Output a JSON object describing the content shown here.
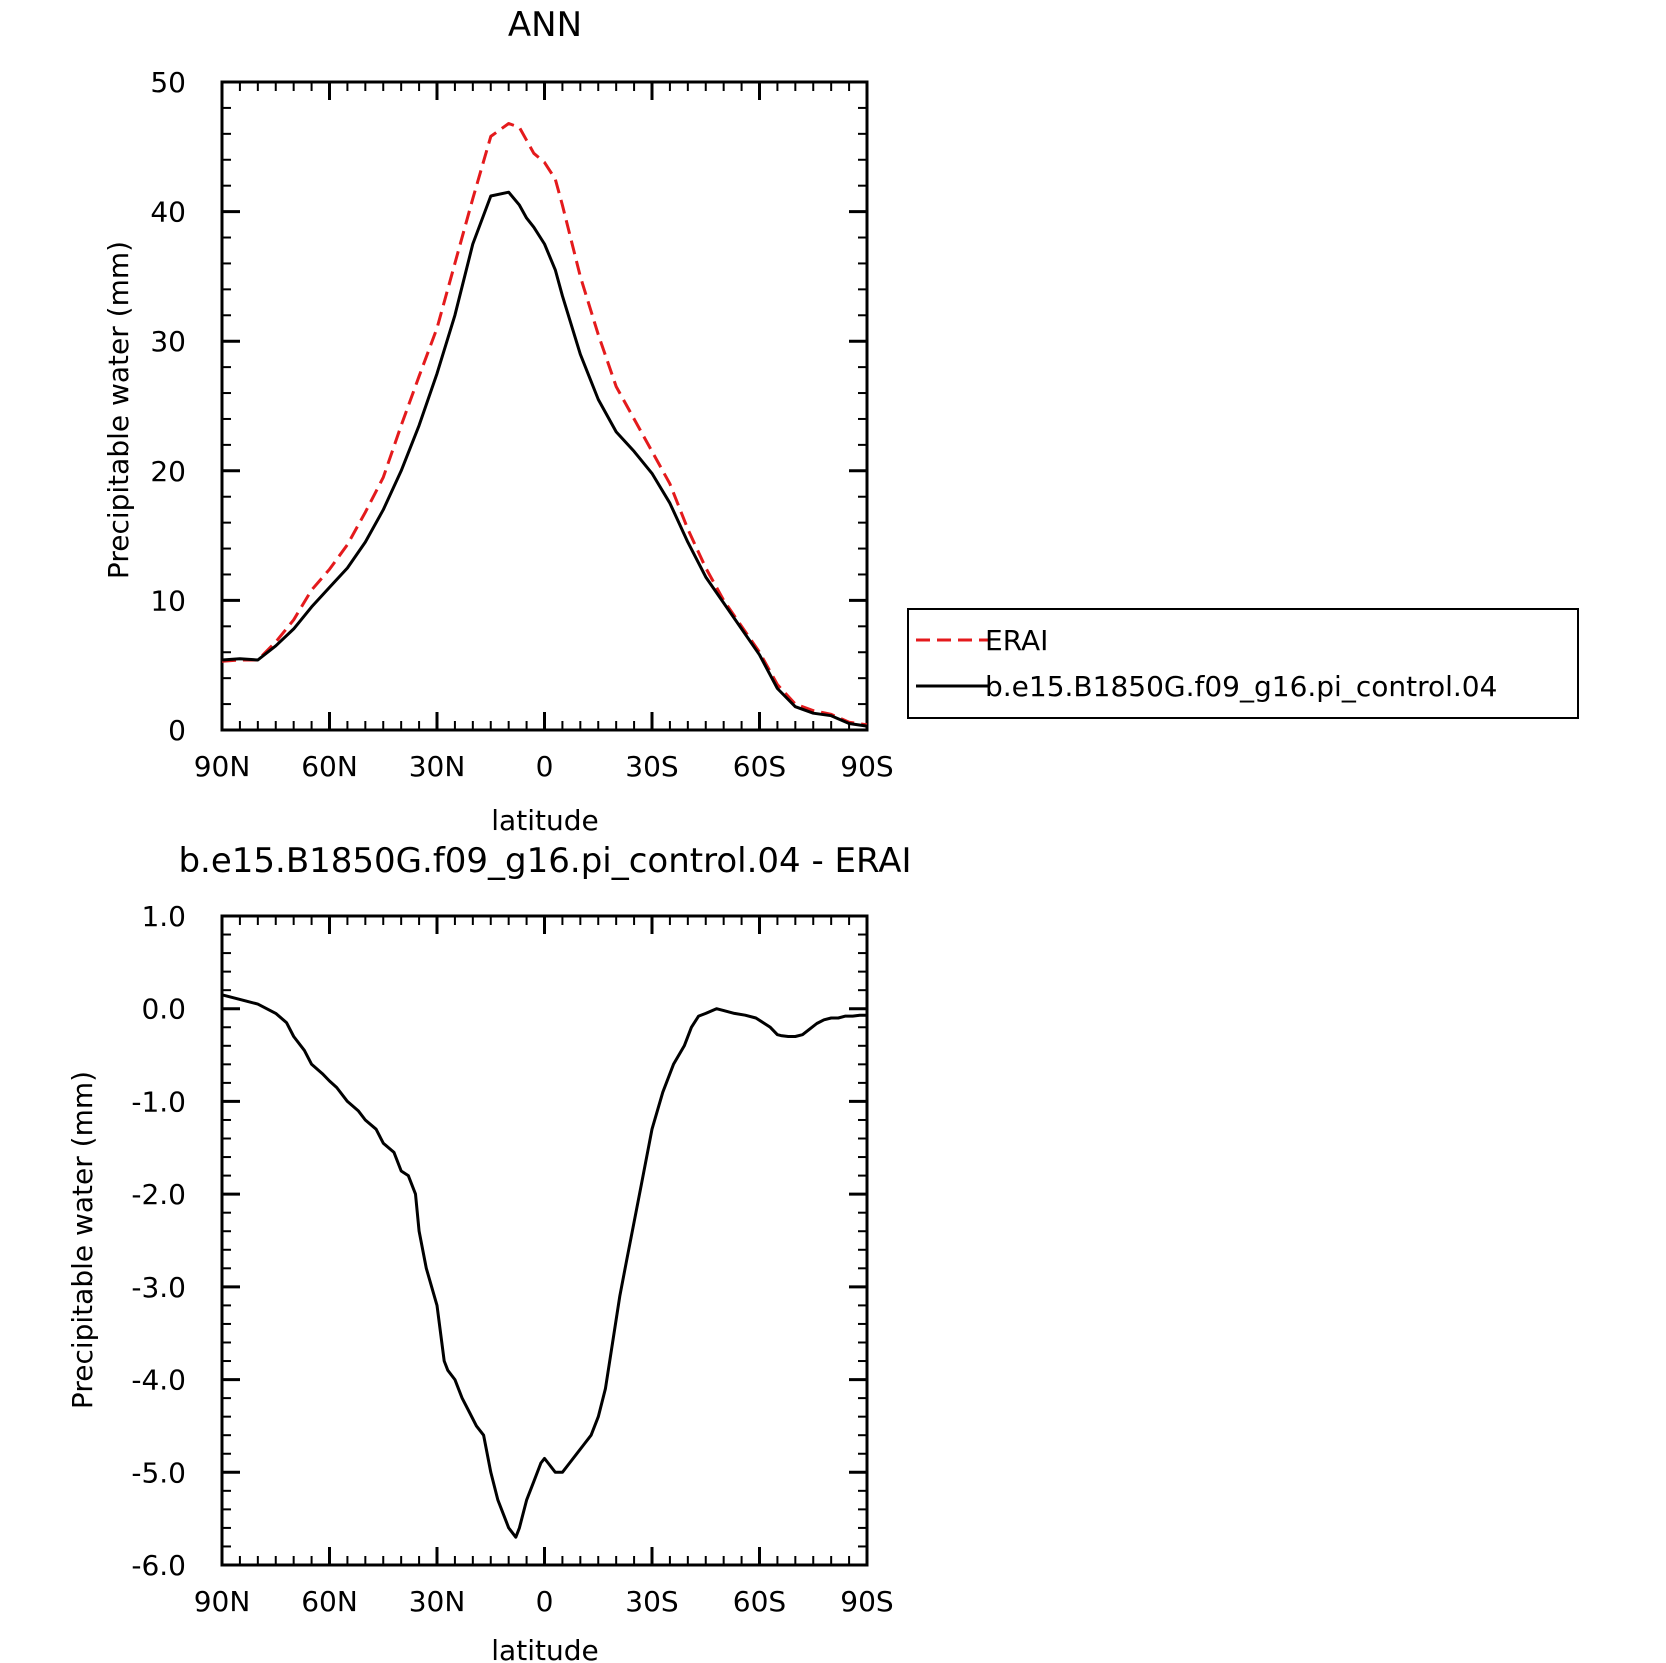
{
  "chart_data": [
    {
      "type": "line",
      "title": "ANN",
      "xlabel": "latitude",
      "ylabel": "Precipitable water (mm)",
      "xlim": [
        90,
        -90
      ],
      "ylim": [
        0,
        50
      ],
      "xticks": [
        90,
        60,
        30,
        0,
        -30,
        -60,
        -90
      ],
      "xtick_labels": [
        "90N",
        "60N",
        "30N",
        "0",
        "30S",
        "60S",
        "90S"
      ],
      "yticks": [
        0,
        10,
        20,
        30,
        40,
        50
      ],
      "ytick_labels": [
        "0",
        "10",
        "20",
        "30",
        "40",
        "50"
      ],
      "grid": false,
      "legend_position": "right",
      "series": [
        {
          "name": "ERAI",
          "color": "#e41a1c",
          "style": "dashed",
          "x": [
            90,
            85,
            80,
            75,
            70,
            65,
            60,
            55,
            50,
            45,
            40,
            35,
            30,
            25,
            20,
            15,
            10,
            7,
            5,
            3,
            0,
            -3,
            -5,
            -10,
            -15,
            -20,
            -25,
            -30,
            -35,
            -40,
            -45,
            -50,
            -55,
            -60,
            -65,
            -70,
            -75,
            -80,
            -85,
            -90
          ],
          "y": [
            5.3,
            5.4,
            5.4,
            6.8,
            8.5,
            10.8,
            12.4,
            14.3,
            16.8,
            19.5,
            23.5,
            27.3,
            31.0,
            36.0,
            41.0,
            45.8,
            46.8,
            46.5,
            45.5,
            44.5,
            43.8,
            42.5,
            40.5,
            35.0,
            30.5,
            26.5,
            24.0,
            21.5,
            19.0,
            15.5,
            12.5,
            10.0,
            8.0,
            6.0,
            3.5,
            2.0,
            1.5,
            1.2,
            0.6,
            0.4
          ]
        },
        {
          "name": "b.e15.B1850G.f09_g16.pi_control.04",
          "color": "#000000",
          "style": "solid",
          "x": [
            90,
            85,
            80,
            75,
            70,
            65,
            60,
            55,
            50,
            45,
            40,
            35,
            30,
            25,
            20,
            15,
            10,
            7,
            5,
            3,
            0,
            -3,
            -5,
            -10,
            -15,
            -20,
            -25,
            -30,
            -35,
            -40,
            -45,
            -50,
            -55,
            -60,
            -65,
            -70,
            -75,
            -80,
            -85,
            -90
          ],
          "y": [
            5.4,
            5.5,
            5.4,
            6.5,
            7.8,
            9.5,
            11.0,
            12.5,
            14.5,
            17.0,
            20.0,
            23.5,
            27.5,
            32.0,
            37.5,
            41.2,
            41.5,
            40.5,
            39.5,
            38.8,
            37.5,
            35.5,
            33.5,
            29.0,
            25.5,
            23.0,
            21.5,
            19.8,
            17.5,
            14.5,
            11.8,
            9.8,
            7.8,
            5.8,
            3.2,
            1.8,
            1.3,
            1.1,
            0.5,
            0.3
          ]
        }
      ]
    },
    {
      "type": "line",
      "title": "b.e15.B1850G.f09_g16.pi_control.04 - ERAI",
      "xlabel": "latitude",
      "ylabel": "Precipitable water (mm)",
      "xlim": [
        90,
        -90
      ],
      "ylim": [
        -6.0,
        1.0
      ],
      "xticks": [
        90,
        60,
        30,
        0,
        -30,
        -60,
        -90
      ],
      "xtick_labels": [
        "90N",
        "60N",
        "30N",
        "0",
        "30S",
        "60S",
        "90S"
      ],
      "yticks": [
        1.0,
        0.0,
        -1.0,
        -2.0,
        -3.0,
        -4.0,
        -5.0,
        -6.0
      ],
      "ytick_labels": [
        "1.0",
        "0.0",
        "-1.0",
        "-2.0",
        "-3.0",
        "-4.0",
        "-5.0",
        "-6.0"
      ],
      "grid": false,
      "series": [
        {
          "color": "#000000",
          "style": "solid",
          "x": [
            90,
            85,
            83,
            80,
            75,
            72,
            70,
            67,
            65,
            62,
            60,
            58,
            55,
            52,
            50,
            47,
            45,
            42,
            40,
            38,
            36,
            35,
            33,
            30,
            28,
            27,
            25,
            23,
            21,
            19,
            17,
            15,
            13,
            10,
            8,
            7,
            5,
            3,
            1,
            0,
            -1,
            -3,
            -5,
            -7,
            -9,
            -11,
            -13,
            -15,
            -17,
            -19,
            -21,
            -23,
            -25,
            -27,
            -30,
            -33,
            -36,
            -39,
            -41,
            -43,
            -45,
            -48,
            -50,
            -53,
            -56,
            -59,
            -61,
            -63,
            -65,
            -66,
            -68,
            -70,
            -72,
            -74,
            -76,
            -78,
            -80,
            -82,
            -84,
            -86,
            -88,
            -90
          ],
          "y": [
            0.15,
            0.1,
            0.08,
            0.05,
            -0.05,
            -0.15,
            -0.3,
            -0.45,
            -0.6,
            -0.7,
            -0.78,
            -0.85,
            -1.0,
            -1.1,
            -1.2,
            -1.3,
            -1.45,
            -1.55,
            -1.75,
            -1.8,
            -2.0,
            -2.4,
            -2.8,
            -3.2,
            -3.8,
            -3.9,
            -4.0,
            -4.2,
            -4.35,
            -4.5,
            -4.6,
            -5.0,
            -5.3,
            -5.6,
            -5.7,
            -5.6,
            -5.3,
            -5.1,
            -4.9,
            -4.85,
            -4.9,
            -5.0,
            -5.0,
            -4.9,
            -4.8,
            -4.7,
            -4.6,
            -4.4,
            -4.1,
            -3.6,
            -3.1,
            -2.7,
            -2.3,
            -1.9,
            -1.3,
            -0.9,
            -0.6,
            -0.4,
            -0.2,
            -0.08,
            -0.05,
            0.0,
            -0.02,
            -0.05,
            -0.07,
            -0.1,
            -0.15,
            -0.2,
            -0.28,
            -0.29,
            -0.3,
            -0.3,
            -0.28,
            -0.22,
            -0.16,
            -0.12,
            -0.1,
            -0.1,
            -0.08,
            -0.08,
            -0.07,
            -0.07
          ]
        }
      ]
    }
  ]
}
